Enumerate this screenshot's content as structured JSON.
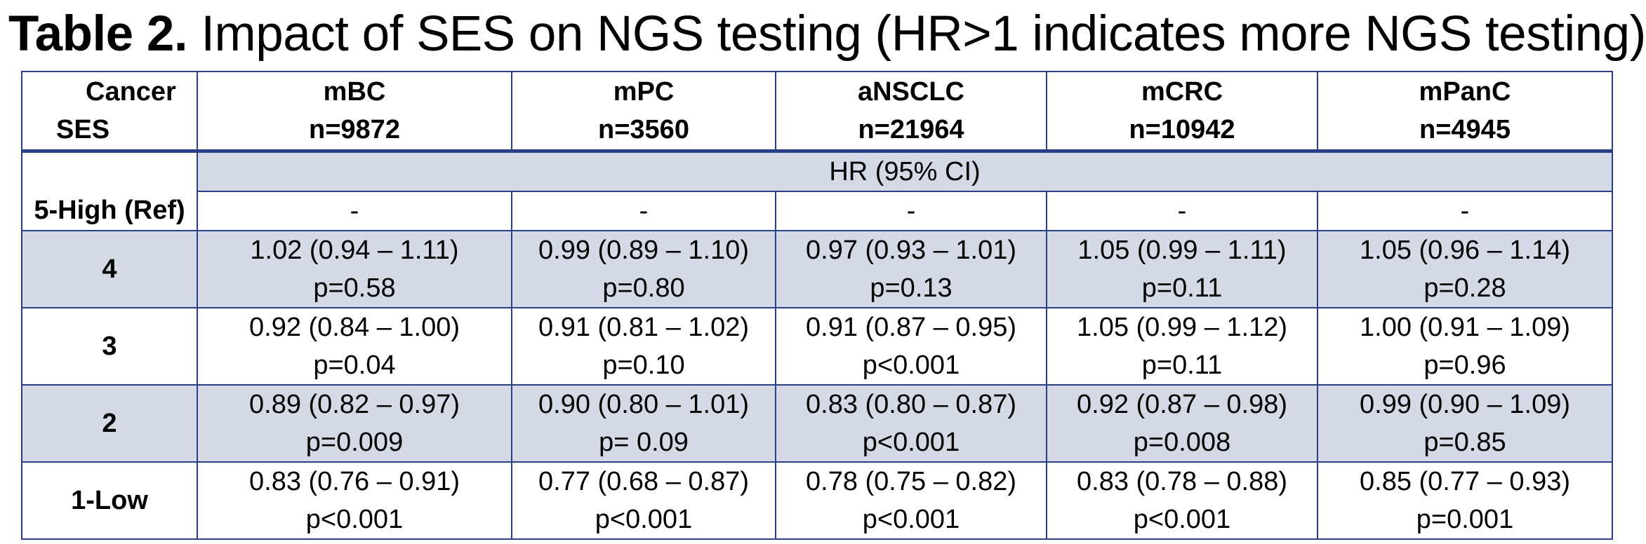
{
  "title": {
    "bold": "Table 2.",
    "text": " Impact of SES on NGS testing (HR>1 indicates more NGS testing)"
  },
  "header": {
    "corner_top": "Cancer",
    "corner_bottom": "SES",
    "columns": [
      {
        "name": "mBC",
        "n": "n=9872"
      },
      {
        "name": "mPC",
        "n": "n=3560"
      },
      {
        "name": "aNSCLC",
        "n": "n=21964"
      },
      {
        "name": "mCRC",
        "n": "n=10942"
      },
      {
        "name": "mPanC",
        "n": "n=4945"
      }
    ]
  },
  "subheader": "HR (95% CI)",
  "ref_row": {
    "label": "5-High (Ref)",
    "values": [
      "-",
      "-",
      "-",
      "-",
      "-"
    ]
  },
  "rows": [
    {
      "label": "4",
      "cells": [
        {
          "hr": "1.02 (0.94 – 1.11)",
          "p": "p=0.58"
        },
        {
          "hr": "0.99 (0.89 – 1.10)",
          "p": "p=0.80"
        },
        {
          "hr": "0.97 (0.93 – 1.01)",
          "p": "p=0.13"
        },
        {
          "hr": "1.05 (0.99 – 1.11)",
          "p": "p=0.11"
        },
        {
          "hr": "1.05 (0.96 – 1.14)",
          "p": "p=0.28"
        }
      ]
    },
    {
      "label": "3",
      "cells": [
        {
          "hr": "0.92 (0.84 – 1.00)",
          "p": "p=0.04"
        },
        {
          "hr": "0.91 (0.81 – 1.02)",
          "p": "p=0.10"
        },
        {
          "hr": "0.91 (0.87 – 0.95)",
          "p": "p<0.001"
        },
        {
          "hr": "1.05 (0.99 – 1.12)",
          "p": "p=0.11"
        },
        {
          "hr": "1.00 (0.91 – 1.09)",
          "p": "p=0.96"
        }
      ]
    },
    {
      "label": "2",
      "cells": [
        {
          "hr": "0.89 (0.82 – 0.97)",
          "p": "p=0.009"
        },
        {
          "hr": "0.90 (0.80 – 1.01)",
          "p": "p= 0.09"
        },
        {
          "hr": "0.83 (0.80 – 0.87)",
          "p": "p<0.001"
        },
        {
          "hr": "0.92 (0.87 – 0.98)",
          "p": "p=0.008"
        },
        {
          "hr": "0.99 (0.90 – 1.09)",
          "p": "p=0.85"
        }
      ]
    },
    {
      "label": "1-Low",
      "cells": [
        {
          "hr": "0.83 (0.76 – 0.91)",
          "p": "p<0.001"
        },
        {
          "hr": "0.77 (0.68 – 0.87)",
          "p": "p<0.001"
        },
        {
          "hr": "0.78 (0.75 – 0.82)",
          "p": "p<0.001"
        },
        {
          "hr": "0.83 (0.78 – 0.88)",
          "p": "p<0.001"
        },
        {
          "hr": "0.85 (0.77 – 0.93)",
          "p": "p=0.001"
        }
      ]
    }
  ],
  "colors": {
    "border": "#2b3f86",
    "shade": "#d3d9e5"
  }
}
